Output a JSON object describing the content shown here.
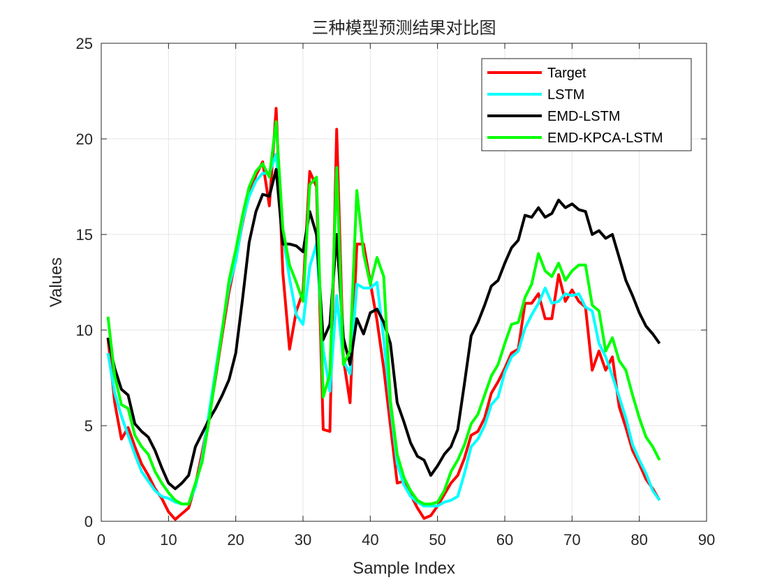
{
  "chart_data": {
    "type": "line",
    "title": "三种模型预测结果对比图",
    "xlabel": "Sample Index",
    "ylabel": "Values",
    "xlim": [
      0,
      90
    ],
    "ylim": [
      0,
      25
    ],
    "xticks": [
      0,
      10,
      20,
      30,
      40,
      50,
      60,
      70,
      80,
      90
    ],
    "yticks": [
      0,
      5,
      10,
      15,
      20,
      25
    ],
    "grid": true,
    "legend_position": "top-right",
    "x": [
      1,
      2,
      3,
      4,
      5,
      6,
      7,
      8,
      9,
      10,
      11,
      12,
      13,
      14,
      15,
      16,
      17,
      18,
      19,
      20,
      21,
      22,
      23,
      24,
      25,
      26,
      27,
      28,
      29,
      30,
      31,
      32,
      33,
      34,
      35,
      36,
      37,
      38,
      39,
      40,
      41,
      42,
      43,
      44,
      45,
      46,
      47,
      48,
      49,
      50,
      51,
      52,
      53,
      54,
      55,
      56,
      57,
      58,
      59,
      60,
      61,
      62,
      63,
      64,
      65,
      66,
      67,
      68,
      69,
      70,
      71,
      72,
      73,
      74,
      75,
      76,
      77,
      78,
      79,
      80,
      81,
      82,
      83
    ],
    "series": [
      {
        "name": "Target",
        "color": "#ff0000",
        "values": [
          9.6,
          6.2,
          4.3,
          4.9,
          3.9,
          3.0,
          2.4,
          1.7,
          1.2,
          0.5,
          0.1,
          0.4,
          0.7,
          1.9,
          3.6,
          5.4,
          7.5,
          9.8,
          12.0,
          13.7,
          15.6,
          17.1,
          18.1,
          18.8,
          16.5,
          21.6,
          13.0,
          9.0,
          11.0,
          12.0,
          18.3,
          17.5,
          4.8,
          4.7,
          20.5,
          8.5,
          6.2,
          14.5,
          14.5,
          12.5,
          10.5,
          8.0,
          5.0,
          2.0,
          2.1,
          1.4,
          0.7,
          0.15,
          0.3,
          0.8,
          1.4,
          2.0,
          2.4,
          3.3,
          4.5,
          4.7,
          5.4,
          6.7,
          7.3,
          8.0,
          8.8,
          9.0,
          11.4,
          11.4,
          11.9,
          10.6,
          10.6,
          12.9,
          11.5,
          12.1,
          11.5,
          11.2,
          7.9,
          8.9,
          7.9,
          8.6,
          6.0,
          4.9,
          3.7,
          3.0,
          2.2,
          1.7,
          1.1
        ]
      },
      {
        "name": "LSTM",
        "color": "#00ffff",
        "values": [
          8.8,
          6.7,
          5.5,
          4.5,
          3.5,
          2.6,
          2.1,
          1.6,
          1.3,
          1.2,
          1.0,
          0.9,
          0.9,
          1.8,
          3.3,
          5.6,
          7.9,
          10.1,
          12.3,
          13.6,
          15.7,
          17.0,
          17.8,
          18.2,
          18.2,
          19.2,
          15.0,
          12.7,
          10.8,
          10.3,
          13.3,
          14.5,
          9.0,
          6.8,
          11.8,
          8.4,
          7.7,
          12.4,
          12.2,
          12.2,
          12.5,
          9.5,
          6.0,
          3.0,
          1.9,
          1.3,
          1.0,
          0.8,
          0.8,
          0.8,
          1.0,
          1.1,
          1.3,
          2.5,
          3.9,
          4.3,
          5.0,
          6.1,
          6.5,
          7.8,
          8.6,
          8.9,
          10.1,
          10.8,
          11.4,
          12.2,
          11.4,
          11.5,
          11.9,
          11.8,
          11.9,
          11.2,
          11.0,
          9.3,
          8.6,
          7.6,
          6.5,
          5.4,
          4.0,
          3.2,
          2.5,
          1.6,
          1.1
        ]
      },
      {
        "name": "EMD-LSTM",
        "color": "#000000",
        "values": [
          9.6,
          8.0,
          6.9,
          6.6,
          5.1,
          4.7,
          4.4,
          3.7,
          2.8,
          2.0,
          1.7,
          2.0,
          2.4,
          3.9,
          4.6,
          5.3,
          5.9,
          6.6,
          7.4,
          8.8,
          11.6,
          14.6,
          16.2,
          17.1,
          17.0,
          18.4,
          14.5,
          14.5,
          14.4,
          14.1,
          16.2,
          15.0,
          9.5,
          10.3,
          15.0,
          9.6,
          8.2,
          10.6,
          9.8,
          10.9,
          11.1,
          10.4,
          9.3,
          6.2,
          5.2,
          4.1,
          3.4,
          3.2,
          2.4,
          2.9,
          3.5,
          3.9,
          4.8,
          7.2,
          9.7,
          10.4,
          11.3,
          12.3,
          12.6,
          13.5,
          14.3,
          14.7,
          16.0,
          15.9,
          16.4,
          15.9,
          16.1,
          16.8,
          16.4,
          16.6,
          16.3,
          16.2,
          15.0,
          15.2,
          14.8,
          15.0,
          13.8,
          12.6,
          11.8,
          10.9,
          10.2,
          9.8,
          9.3
        ]
      },
      {
        "name": "EMD-KPCA-LSTM",
        "color": "#00ff00",
        "values": [
          10.7,
          7.6,
          6.1,
          5.9,
          4.5,
          3.9,
          3.5,
          2.6,
          2.0,
          1.5,
          1.1,
          0.9,
          0.9,
          2.0,
          3.1,
          5.2,
          7.6,
          10.0,
          12.6,
          14.2,
          16.0,
          17.5,
          18.3,
          18.7,
          18.0,
          20.9,
          15.3,
          13.4,
          12.5,
          11.5,
          17.6,
          18.0,
          6.5,
          7.7,
          18.5,
          8.2,
          8.9,
          17.3,
          14.0,
          12.4,
          13.8,
          12.8,
          6.3,
          3.5,
          2.3,
          1.6,
          1.1,
          0.9,
          0.9,
          1.0,
          1.6,
          2.6,
          3.2,
          4.0,
          5.1,
          5.6,
          6.6,
          7.6,
          8.2,
          9.3,
          10.3,
          10.4,
          11.7,
          12.4,
          14.0,
          13.1,
          12.8,
          13.5,
          12.6,
          13.1,
          13.4,
          13.4,
          11.3,
          11.0,
          8.9,
          9.6,
          8.4,
          7.9,
          6.6,
          5.4,
          4.4,
          3.9,
          3.2
        ]
      }
    ]
  }
}
